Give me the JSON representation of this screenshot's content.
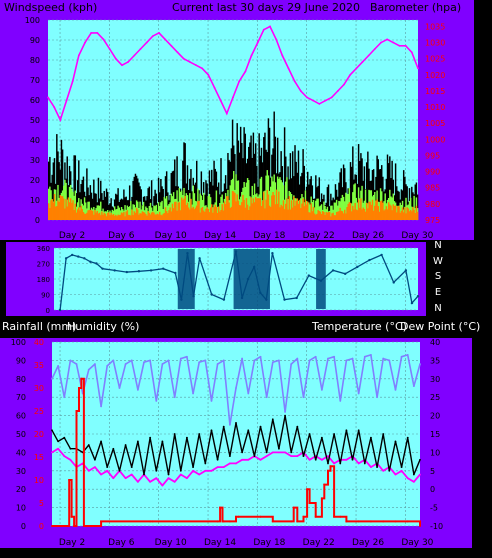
{
  "header": {
    "windspeed_label": "Windspeed (kph)",
    "period_label": "Current last 30 days 29 June 2020",
    "barometer_label": "Barometer (hpa)",
    "rainfall_label": "Rainfall (mm)",
    "humidity_label": "Humidity (%)",
    "temperature_label": "Temperature (°C)",
    "dewpoint_label": "Dew Point (°C)"
  },
  "x_labels": [
    "Day 2",
    "Day 6",
    "Day 10",
    "Day 14",
    "Day 18",
    "Day 22",
    "Day 26",
    "Day 30"
  ],
  "compass": [
    "N",
    "W",
    "S",
    "E",
    "N"
  ],
  "colors": {
    "panel_bg": "#80ffff",
    "frame": "#8000ff",
    "grid": "#5a9aa0",
    "barometer": "#ff00ff",
    "wind_gust": "#000000",
    "wind_avg": "#80ff40",
    "wind_low": "#ff8000",
    "direction": "#004a80",
    "humidity": "#8080ff",
    "temperature": "#000000",
    "dewpoint": "#ff00ff",
    "rainfall": "#ff0000",
    "left_axis_text": "#000000",
    "red_axis_text": "#ff0000"
  },
  "chart_data": [
    {
      "type": "line",
      "name": "wind-barometer",
      "x_range": [
        0,
        30
      ],
      "left_axis": {
        "ticks": [
          0,
          10,
          20,
          30,
          40,
          50,
          60,
          70,
          80,
          90,
          100
        ],
        "ylim": [
          0,
          100
        ]
      },
      "right_axis": {
        "ticks": [
          975,
          980,
          985,
          990,
          995,
          1000,
          1005,
          1010,
          1015,
          1020,
          1025,
          1030,
          1035
        ],
        "ylim": [
          975,
          1037
        ]
      },
      "barometer": {
        "x": [
          0,
          0.5,
          1,
          1.5,
          2,
          2.5,
          3,
          3.5,
          4,
          4.5,
          5,
          5.5,
          6,
          6.5,
          7,
          7.5,
          8,
          8.5,
          9,
          9.5,
          10,
          10.5,
          11,
          11.5,
          12,
          12.5,
          13,
          13.5,
          14,
          14.5,
          15,
          15.5,
          16,
          16.5,
          17,
          17.5,
          18,
          18.5,
          19,
          19.5,
          20,
          20.5,
          21,
          21.5,
          22,
          22.5,
          23,
          23.5,
          24,
          24.5,
          25,
          25.5,
          26,
          26.5,
          27,
          27.5,
          28,
          28.5,
          29,
          29.5,
          30
        ],
        "y": [
          1013,
          1010,
          1006,
          1012,
          1018,
          1026,
          1030,
          1033,
          1033,
          1031,
          1028,
          1025,
          1023,
          1024,
          1026,
          1028,
          1030,
          1032,
          1033,
          1031,
          1029,
          1027,
          1025,
          1024,
          1023,
          1022,
          1020,
          1016,
          1012,
          1008,
          1013,
          1018,
          1021,
          1026,
          1030,
          1034,
          1035,
          1031,
          1026,
          1022,
          1018,
          1015,
          1013,
          1012,
          1011,
          1012,
          1013,
          1015,
          1017,
          1020,
          1022,
          1024,
          1026,
          1028,
          1030,
          1031,
          1030,
          1029,
          1029,
          1027,
          1022
        ]
      },
      "wind_gust": {
        "x": [
          0,
          1,
          2,
          3,
          4,
          5,
          6,
          7,
          8,
          9,
          10,
          11,
          12,
          13,
          14,
          15,
          16,
          17,
          18,
          19,
          20,
          21,
          22,
          23,
          24,
          25,
          26,
          27,
          28,
          29,
          30
        ],
        "y": [
          33,
          36,
          26,
          20,
          17,
          13,
          12,
          18,
          15,
          16,
          22,
          33,
          26,
          22,
          25,
          41,
          35,
          32,
          43,
          37,
          30,
          28,
          17,
          14,
          22,
          31,
          26,
          28,
          24,
          18,
          20
        ]
      },
      "wind_avg": {
        "x": [
          0,
          1,
          2,
          3,
          4,
          5,
          6,
          7,
          8,
          9,
          10,
          11,
          12,
          13,
          14,
          15,
          16,
          17,
          18,
          19,
          20,
          21,
          22,
          23,
          24,
          25,
          26,
          27,
          28,
          29,
          30
        ],
        "y": [
          16,
          18,
          13,
          9,
          8,
          6,
          6,
          9,
          8,
          8,
          11,
          16,
          13,
          11,
          12,
          20,
          17,
          16,
          21,
          18,
          15,
          14,
          8,
          7,
          11,
          15,
          13,
          14,
          12,
          9,
          10
        ]
      },
      "wind_low": {
        "x": [
          0,
          1,
          2,
          3,
          4,
          5,
          6,
          7,
          8,
          9,
          10,
          11,
          12,
          13,
          14,
          15,
          16,
          17,
          18,
          19,
          20,
          21,
          22,
          23,
          24,
          25,
          26,
          27,
          28,
          29,
          30
        ],
        "y": [
          10,
          11,
          8,
          5,
          4,
          3,
          3,
          5,
          4,
          4,
          6,
          10,
          8,
          6,
          7,
          12,
          10,
          9,
          13,
          11,
          9,
          8,
          4,
          3,
          6,
          9,
          8,
          8,
          7,
          5,
          6
        ]
      }
    },
    {
      "type": "scatter",
      "name": "wind-direction",
      "x_range": [
        0,
        30
      ],
      "left_axis": {
        "ticks": [
          0,
          90,
          180,
          270,
          360
        ],
        "ylim": [
          0,
          360
        ]
      },
      "direction": {
        "x": [
          0.5,
          1,
          1.5,
          2,
          2.5,
          3,
          3.5,
          4,
          5,
          6,
          7,
          8,
          9,
          10,
          10.5,
          11,
          11.5,
          12,
          13,
          14,
          15,
          15.5,
          16,
          16.5,
          17,
          17.5,
          18,
          19,
          20,
          21,
          22,
          23,
          24,
          25,
          26,
          27,
          28,
          29,
          29.5,
          30
        ],
        "y": [
          0,
          300,
          320,
          310,
          300,
          280,
          270,
          240,
          230,
          220,
          225,
          230,
          240,
          215,
          60,
          330,
          80,
          300,
          90,
          60,
          340,
          70,
          180,
          250,
          100,
          60,
          330,
          60,
          70,
          200,
          170,
          230,
          210,
          250,
          290,
          320,
          160,
          230,
          40,
          80
        ]
      }
    },
    {
      "type": "line",
      "name": "rain-humidity-temperature",
      "x_range": [
        0,
        30
      ],
      "left_axis": {
        "ticks": [
          0,
          10,
          20,
          30,
          40,
          50,
          60,
          70,
          80,
          90,
          100
        ],
        "ylim": [
          0,
          100
        ]
      },
      "red_axis": {
        "ticks": [
          0,
          5,
          10,
          15,
          20,
          25,
          30,
          35,
          40
        ],
        "ylim": [
          0,
          40
        ]
      },
      "right_axis": {
        "ticks": [
          -10,
          -5,
          0,
          5,
          10,
          15,
          20,
          25,
          30,
          35,
          40
        ],
        "ylim": [
          -10,
          40
        ]
      },
      "humidity": {
        "x": [
          0,
          0.5,
          1,
          1.5,
          2,
          2.5,
          3,
          3.5,
          4,
          4.5,
          5,
          5.5,
          6,
          6.5,
          7,
          7.5,
          8,
          8.5,
          9,
          9.5,
          10,
          10.5,
          11,
          11.5,
          12,
          12.5,
          13,
          13.5,
          14,
          14.5,
          15,
          15.5,
          16,
          16.5,
          17,
          17.5,
          18,
          18.5,
          19,
          19.5,
          20,
          20.5,
          21,
          21.5,
          22,
          22.5,
          23,
          23.5,
          24,
          24.5,
          25,
          25.5,
          26,
          26.5,
          27,
          27.5,
          28,
          28.5,
          29,
          29.5,
          30
        ],
        "y": [
          80,
          87,
          70,
          90,
          88,
          72,
          85,
          88,
          65,
          87,
          90,
          75,
          88,
          90,
          74,
          89,
          90,
          68,
          88,
          90,
          70,
          91,
          92,
          72,
          89,
          90,
          68,
          88,
          90,
          55,
          75,
          91,
          72,
          90,
          92,
          70,
          89,
          90,
          62,
          88,
          91,
          70,
          90,
          92,
          74,
          91,
          92,
          68,
          90,
          91,
          72,
          92,
          93,
          70,
          91,
          90,
          74,
          92,
          93,
          76,
          88
        ]
      },
      "temperature": {
        "x": [
          0,
          0.5,
          1,
          1.5,
          2,
          2.5,
          3,
          3.5,
          4,
          4.5,
          5,
          5.5,
          6,
          6.5,
          7,
          7.5,
          8,
          8.5,
          9,
          9.5,
          10,
          10.5,
          11,
          11.5,
          12,
          12.5,
          13,
          13.5,
          14,
          14.5,
          15,
          15.5,
          16,
          16.5,
          17,
          17.5,
          18,
          18.5,
          19,
          19.5,
          20,
          20.5,
          21,
          21.5,
          22,
          22.5,
          23,
          23.5,
          24,
          24.5,
          25,
          25.5,
          26,
          26.5,
          27,
          27.5,
          28,
          28.5,
          29,
          29.5,
          30
        ],
        "y": [
          16,
          13,
          14,
          11,
          11,
          10,
          12,
          8,
          13,
          6,
          11,
          5,
          12,
          6,
          13,
          4,
          14,
          5,
          13,
          4,
          15,
          5,
          14,
          6,
          15,
          7,
          16,
          8,
          17,
          9,
          18,
          10,
          16,
          9,
          17,
          10,
          19,
          11,
          20,
          10,
          17,
          9,
          15,
          8,
          14,
          7,
          15,
          7,
          16,
          8,
          16,
          7,
          14,
          6,
          15,
          5,
          13,
          6,
          14,
          4,
          8
        ]
      },
      "dewpoint": {
        "x": [
          0,
          0.5,
          1,
          1.5,
          2,
          2.5,
          3,
          3.5,
          4,
          4.5,
          5,
          5.5,
          6,
          6.5,
          7,
          7.5,
          8,
          8.5,
          9,
          9.5,
          10,
          10.5,
          11,
          11.5,
          12,
          12.5,
          13,
          13.5,
          14,
          14.5,
          15,
          15.5,
          16,
          16.5,
          17,
          17.5,
          18,
          18.5,
          19,
          19.5,
          20,
          20.5,
          21,
          21.5,
          22,
          22.5,
          23,
          23.5,
          24,
          24.5,
          25,
          25.5,
          26,
          26.5,
          27,
          27.5,
          28,
          28.5,
          29,
          29.5,
          30
        ],
        "y": [
          10,
          11,
          9,
          8,
          6,
          7,
          5,
          6,
          4,
          5,
          3,
          5,
          3,
          4,
          2,
          4,
          2,
          3,
          1,
          3,
          2,
          4,
          3,
          5,
          4,
          5,
          5,
          6,
          6,
          7,
          7,
          8,
          8,
          9,
          8,
          9,
          10,
          10,
          10,
          9,
          9,
          10,
          8,
          9,
          8,
          9,
          7,
          8,
          8,
          9,
          7,
          8,
          6,
          7,
          5,
          6,
          4,
          5,
          3,
          2,
          4
        ]
      },
      "rainfall": {
        "x": [
          0,
          1.2,
          1.4,
          1.6,
          1.8,
          2,
          2.2,
          2.4,
          2.6,
          3,
          3.5,
          4,
          8,
          8.2,
          13.5,
          13.7,
          13.9,
          14,
          14.5,
          15,
          15.2,
          17,
          18,
          19.5,
          19.7,
          20,
          20.5,
          20.8,
          21,
          21.5,
          22,
          22.2,
          22.5,
          22.7,
          23,
          23.5,
          24,
          25,
          26,
          27,
          28,
          29,
          30
        ],
        "y": [
          0,
          0,
          10,
          2,
          0,
          25,
          30,
          32,
          0,
          0,
          0,
          1,
          1,
          1,
          1,
          4,
          1,
          1,
          1,
          2,
          2,
          2,
          1,
          1,
          4,
          1,
          2,
          8,
          5,
          2,
          6,
          9,
          12,
          13,
          2,
          2,
          1,
          1,
          1,
          1,
          1,
          1,
          0
        ]
      }
    }
  ]
}
